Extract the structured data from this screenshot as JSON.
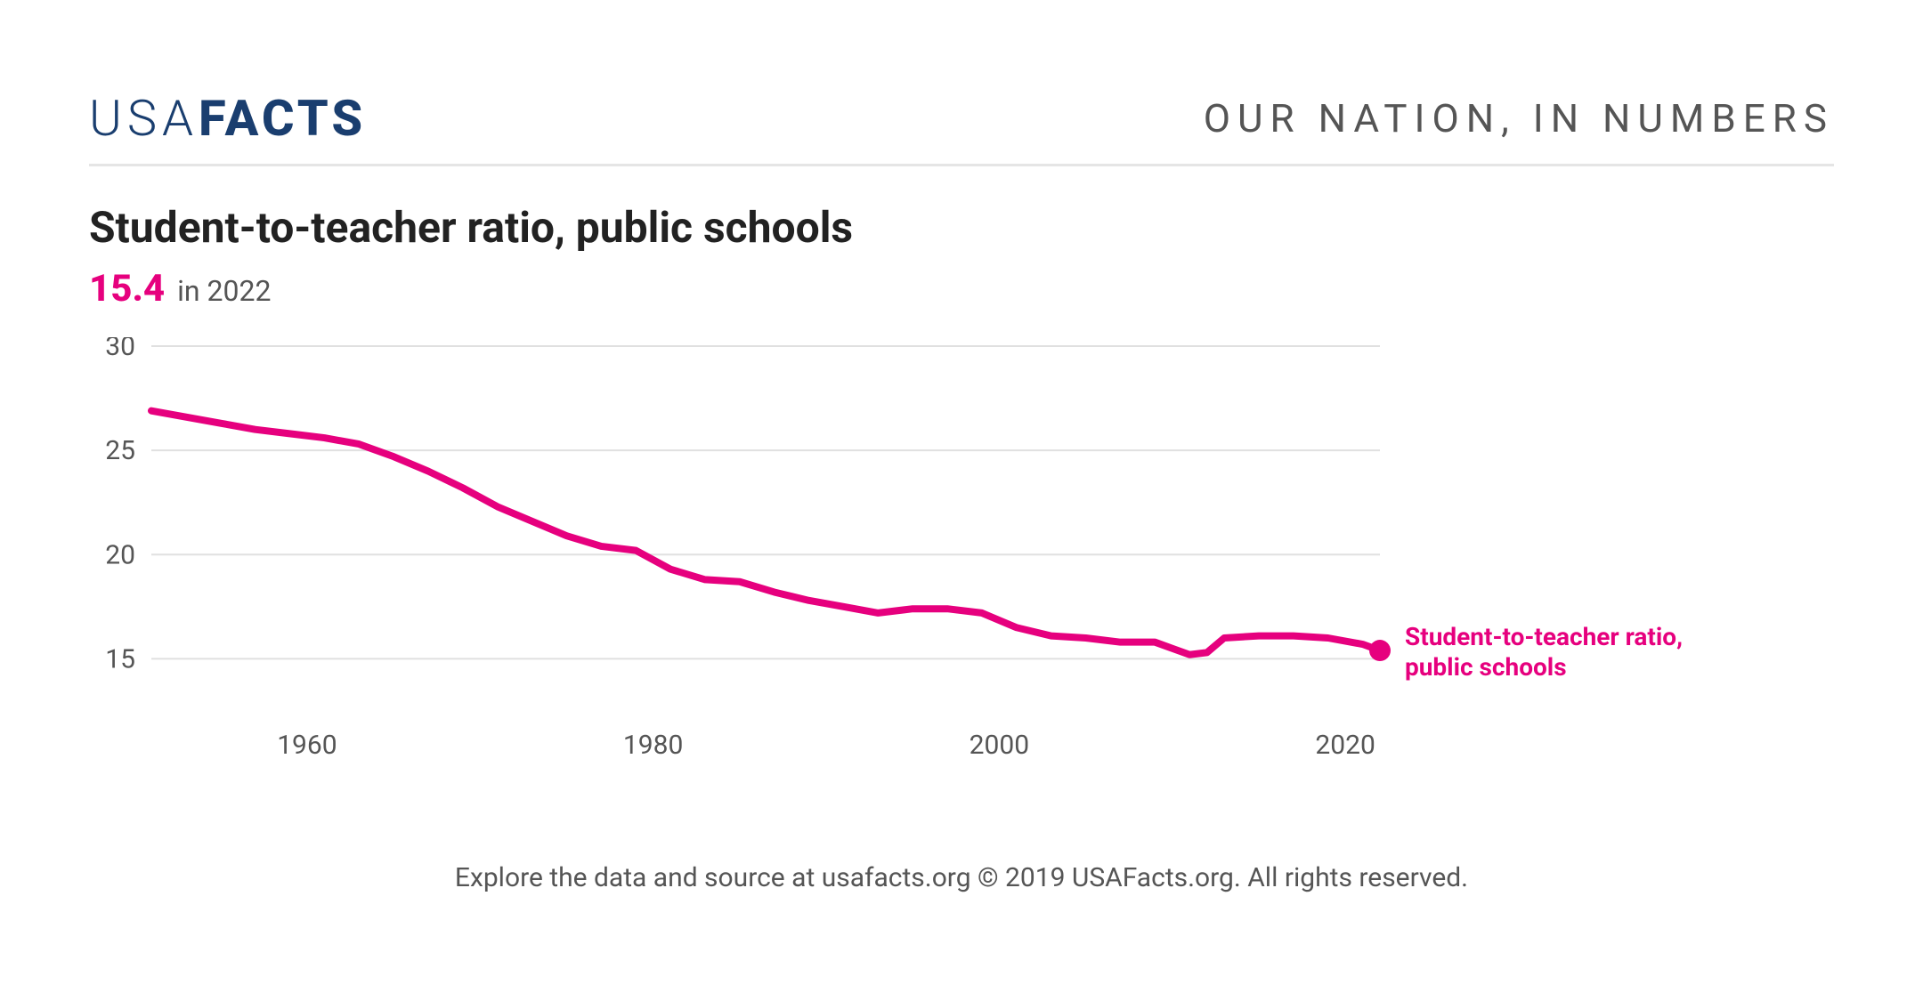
{
  "header": {
    "logo_light": "USA",
    "logo_bold": "FACTS",
    "logo_color": "#1a3e6f",
    "tagline": "OUR NATION, IN NUMBERS",
    "tagline_color": "#555555",
    "divider_color": "#e5e5e5"
  },
  "chart": {
    "type": "line",
    "title": "Student-to-teacher ratio, public schools",
    "title_color": "#222222",
    "title_fontsize": 48,
    "stat_value": "15.4",
    "stat_year_prefix": "in ",
    "stat_year": "2022",
    "stat_color": "#e6007e",
    "series_label_line1": "Student-to-teacher ratio,",
    "series_label_line2": "public schools",
    "line_color": "#e6007e",
    "line_width": 8,
    "end_marker_radius": 12,
    "background_color": "#ffffff",
    "grid_color": "#e0e0e0",
    "axis_text_color": "#555555",
    "axis_fontsize": 30,
    "label_fontsize": 28,
    "xlim": [
      1951,
      2022
    ],
    "ylim": [
      12.5,
      30
    ],
    "yticks": [
      15,
      20,
      25,
      30
    ],
    "xticks": [
      1960,
      1980,
      2000,
      2020
    ],
    "x": [
      1951,
      1953,
      1955,
      1957,
      1959,
      1961,
      1963,
      1965,
      1967,
      1969,
      1971,
      1973,
      1975,
      1977,
      1979,
      1981,
      1983,
      1985,
      1987,
      1989,
      1991,
      1993,
      1995,
      1997,
      1999,
      2001,
      2003,
      2005,
      2007,
      2009,
      2010,
      2011,
      2012,
      2013,
      2015,
      2017,
      2019,
      2021,
      2022
    ],
    "y": [
      26.9,
      26.6,
      26.3,
      26.0,
      25.8,
      25.6,
      25.3,
      24.7,
      24.0,
      23.2,
      22.3,
      21.6,
      20.9,
      20.4,
      20.2,
      19.3,
      18.8,
      18.7,
      18.2,
      17.8,
      17.5,
      17.2,
      17.4,
      17.4,
      17.2,
      16.5,
      16.1,
      16.0,
      15.8,
      15.8,
      15.5,
      15.2,
      15.3,
      16.0,
      16.1,
      16.1,
      16.0,
      15.7,
      15.4
    ]
  },
  "footer": {
    "text": "Explore the data and source at usafacts.org © 2019 USAFacts.org. All rights reserved.",
    "color": "#555555",
    "fontsize": 30
  }
}
